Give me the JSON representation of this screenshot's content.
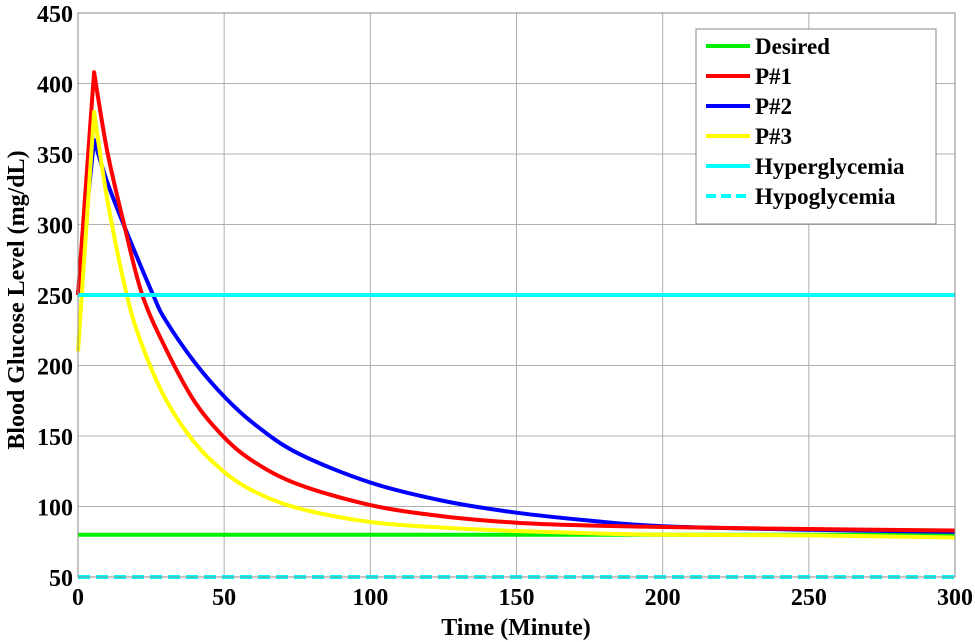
{
  "chart_data": {
    "type": "line",
    "title": "",
    "xlabel": "Time (Minute)",
    "ylabel": "Blood Glucose Level (mg/dL)",
    "xlim": [
      0,
      300
    ],
    "ylim": [
      50,
      450
    ],
    "xticks": [
      0,
      50,
      100,
      150,
      200,
      250,
      300
    ],
    "yticks": [
      50,
      100,
      150,
      200,
      250,
      300,
      350,
      400,
      450
    ],
    "grid": true,
    "legend_position": "upper right",
    "series": [
      {
        "name": "Desired",
        "color": "#00ee00",
        "style": "solid",
        "x": [
          0,
          300
        ],
        "y": [
          80,
          80
        ]
      },
      {
        "name": "P#1",
        "color": "#ff0000",
        "style": "solid",
        "x": [
          0,
          5.5,
          10,
          16,
          22,
          30,
          40,
          50,
          60,
          75,
          100,
          125,
          150,
          175,
          200,
          250,
          300
        ],
        "y": [
          250,
          408,
          352,
          298,
          250,
          212,
          174,
          149,
          132,
          116,
          101,
          93,
          88.5,
          86.5,
          85.5,
          84,
          83
        ]
      },
      {
        "name": "P#2",
        "color": "#0000ff",
        "style": "solid",
        "x": [
          0,
          5.5,
          10,
          16,
          25.7,
          30,
          40,
          50,
          60,
          75,
          100,
          125,
          150,
          175,
          200,
          250,
          300
        ],
        "y": [
          250,
          360,
          330,
          298,
          250,
          232,
          202,
          178,
          159,
          138,
          117,
          104,
          95.6,
          90,
          86,
          83.5,
          82
        ]
      },
      {
        "name": "P#3",
        "color": "#ffff00",
        "style": "solid",
        "x": [
          0,
          5.5,
          10,
          16.7,
          22,
          30,
          40,
          50,
          60,
          75,
          100,
          125,
          150,
          175,
          200,
          250,
          300
        ],
        "y": [
          210,
          380,
          318,
          250,
          214,
          176,
          145,
          124.5,
          111,
          99,
          89,
          85,
          82.6,
          81,
          80,
          79.5,
          78
        ]
      },
      {
        "name": "Hyperglycemia",
        "color": "#00ffff",
        "style": "solid",
        "x": [
          0,
          300
        ],
        "y": [
          250,
          250
        ]
      },
      {
        "name": "Hypoglycemia",
        "color": "#00ffff",
        "style": "dashed",
        "x": [
          0,
          300
        ],
        "y": [
          50,
          50
        ]
      }
    ]
  },
  "legend": {
    "items": [
      {
        "label": "Desired",
        "color": "#00ee00",
        "dash": false
      },
      {
        "label": "P#1",
        "color": "#ff0000",
        "dash": false
      },
      {
        "label": "P#2",
        "color": "#0000ff",
        "dash": false
      },
      {
        "label": "P#3",
        "color": "#ffff00",
        "dash": false
      },
      {
        "label": "Hyperglycemia",
        "color": "#00ffff",
        "dash": false
      },
      {
        "label": "Hypoglycemia",
        "color": "#00ffff",
        "dash": true
      }
    ]
  },
  "axes": {
    "x_label": "Time (Minute)",
    "y_label": "Blood Glucose Level (mg/dL)"
  }
}
